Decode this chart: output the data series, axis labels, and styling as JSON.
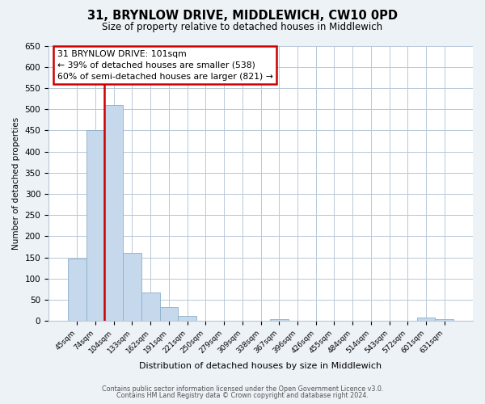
{
  "title": "31, BRYNLOW DRIVE, MIDDLEWICH, CW10 0PD",
  "subtitle": "Size of property relative to detached houses in Middlewich",
  "xlabel": "Distribution of detached houses by size in Middlewich",
  "ylabel": "Number of detached properties",
  "bar_labels": [
    "45sqm",
    "74sqm",
    "104sqm",
    "133sqm",
    "162sqm",
    "191sqm",
    "221sqm",
    "250sqm",
    "279sqm",
    "309sqm",
    "338sqm",
    "367sqm",
    "396sqm",
    "426sqm",
    "455sqm",
    "484sqm",
    "514sqm",
    "543sqm",
    "572sqm",
    "601sqm",
    "631sqm"
  ],
  "bar_heights": [
    148,
    450,
    510,
    160,
    67,
    33,
    12,
    0,
    0,
    0,
    0,
    5,
    0,
    0,
    0,
    0,
    0,
    0,
    0,
    8,
    5
  ],
  "bar_color": "#c6d9ec",
  "highlight_bar_index": 2,
  "highlight_color": "#cc0000",
  "annotation_title": "31 BRYNLOW DRIVE: 101sqm",
  "annotation_line1": "← 39% of detached houses are smaller (538)",
  "annotation_line2": "60% of semi-detached houses are larger (821) →",
  "annotation_box_color": "#ffffff",
  "annotation_box_edge": "#cc0000",
  "ylim": [
    0,
    650
  ],
  "yticks": [
    0,
    50,
    100,
    150,
    200,
    250,
    300,
    350,
    400,
    450,
    500,
    550,
    600,
    650
  ],
  "footer_line1": "Contains HM Land Registry data © Crown copyright and database right 2024.",
  "footer_line2": "Contains public sector information licensed under the Open Government Licence v3.0.",
  "bg_color": "#edf2f7",
  "plot_bg_color": "#ffffff",
  "grid_color": "#b8c8d8"
}
